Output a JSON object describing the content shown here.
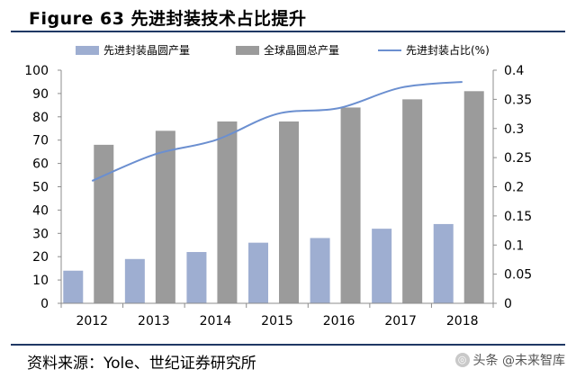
{
  "figure": {
    "title": "Figure 63  先进封装技术占比提升",
    "source": "资料来源：Yole、世纪证券研究所",
    "watermark": "头条 @未来智库",
    "watermark_icon": "toutiao-logo-icon"
  },
  "colors": {
    "advanced_bar": "#9eaed1",
    "total_bar": "#9b9b9b",
    "ratio_line": "#6b8fd0",
    "axis": "#8c8c8c",
    "rule": "#1f3864"
  },
  "chart_data": {
    "type": "bar",
    "categories": [
      "2012",
      "2013",
      "2014",
      "2015",
      "2016",
      "2017",
      "2018"
    ],
    "series": [
      {
        "name": "先进封装晶圆产量",
        "type": "bar",
        "axis": "left",
        "values": [
          14,
          19,
          22,
          26,
          28,
          32,
          34
        ]
      },
      {
        "name": "全球晶圆总产量",
        "type": "bar",
        "axis": "left",
        "values": [
          68,
          74,
          78,
          78,
          84,
          87.5,
          91
        ]
      },
      {
        "name": "先进封装占比(%)",
        "type": "line",
        "axis": "right",
        "values": [
          0.21,
          0.255,
          0.28,
          0.325,
          0.335,
          0.37,
          0.38
        ]
      }
    ],
    "ylim": [
      0,
      100
    ],
    "yticks": [
      "0",
      "10",
      "20",
      "30",
      "40",
      "50",
      "60",
      "70",
      "80",
      "90",
      "100"
    ],
    "y2lim": [
      0,
      0.4
    ],
    "y2ticks": [
      "0",
      "0.05",
      "0.1",
      "0.15",
      "0.2",
      "0.25",
      "0.3",
      "0.35",
      "0.4"
    ],
    "legend_position": "top",
    "grid": false
  }
}
